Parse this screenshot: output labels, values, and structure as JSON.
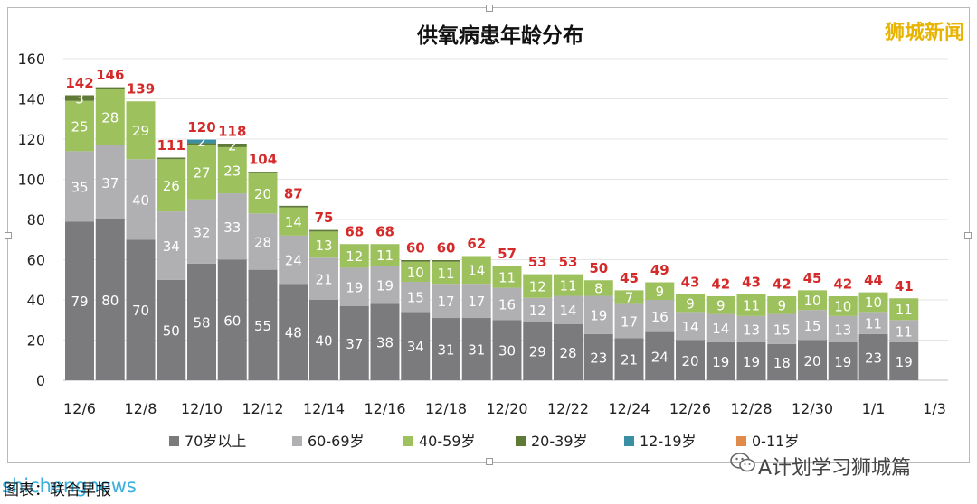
{
  "brand_logo": "狮城新闻",
  "watermark_left": "shichengnews",
  "watermark_right": "A计划学习狮城篇",
  "source_text": "图表：联合早报",
  "icons": {
    "wechat": "wechat-icon"
  },
  "chart_data": {
    "type": "bar",
    "stacked": true,
    "title": "供氧病患年龄分布",
    "xlabel": "",
    "ylabel": "",
    "ylim": [
      0,
      160
    ],
    "yticks": [
      0,
      20,
      40,
      60,
      80,
      100,
      120,
      140,
      160
    ],
    "grid": true,
    "legend_position": "bottom",
    "x_tick_labels": [
      "12/6",
      "12/8",
      "12/10",
      "12/12",
      "12/14",
      "12/16",
      "12/18",
      "12/20",
      "12/22",
      "12/24",
      "12/26",
      "12/28",
      "12/30",
      "1/1",
      "1/3"
    ],
    "categories": [
      "12/6",
      "12/7",
      "12/8",
      "12/9",
      "12/10",
      "12/11",
      "12/12",
      "12/13",
      "12/14",
      "12/15",
      "12/16",
      "12/17",
      "12/18",
      "12/19",
      "12/20",
      "12/21",
      "12/22",
      "12/23",
      "12/24",
      "12/25",
      "12/26",
      "12/27",
      "12/28",
      "12/29",
      "12/30",
      "12/31",
      "1/1",
      "1/2"
    ],
    "totals": [
      142,
      146,
      139,
      111,
      120,
      118,
      104,
      87,
      75,
      68,
      68,
      60,
      60,
      62,
      57,
      53,
      53,
      50,
      45,
      49,
      43,
      42,
      43,
      42,
      45,
      42,
      44,
      41
    ],
    "series": [
      {
        "name": "70岁以上",
        "color": "#7b7b7e",
        "values": [
          79,
          80,
          70,
          50,
          58,
          60,
          55,
          48,
          40,
          37,
          38,
          34,
          31,
          31,
          30,
          29,
          28,
          23,
          21,
          24,
          20,
          19,
          19,
          18,
          20,
          19,
          23,
          19
        ]
      },
      {
        "name": "60-69岁",
        "color": "#b0b0b3",
        "values": [
          35,
          37,
          40,
          34,
          32,
          33,
          28,
          24,
          21,
          19,
          19,
          15,
          17,
          17,
          16,
          12,
          14,
          19,
          17,
          16,
          14,
          14,
          13,
          15,
          15,
          13,
          11,
          11
        ]
      },
      {
        "name": "40-59岁",
        "color": "#9cc15d",
        "values": [
          25,
          28,
          29,
          26,
          27,
          23,
          20,
          14,
          13,
          12,
          11,
          10,
          11,
          14,
          11,
          12,
          11,
          8,
          7,
          9,
          9,
          9,
          11,
          9,
          10,
          10,
          10,
          11
        ]
      },
      {
        "name": "20-39岁",
        "color": "#5e7a36",
        "values": [
          3,
          1,
          0,
          1,
          1,
          2,
          1,
          1,
          1,
          0,
          0,
          1,
          1,
          0,
          0,
          0,
          0,
          0,
          0,
          0,
          0,
          0,
          0,
          0,
          0,
          0,
          0,
          0
        ]
      },
      {
        "name": "12-19岁",
        "color": "#3a8fa3",
        "values": [
          0,
          0,
          0,
          0,
          2,
          0,
          0,
          0,
          0,
          0,
          0,
          0,
          0,
          0,
          0,
          0,
          0,
          0,
          0,
          0,
          0,
          0,
          0,
          0,
          0,
          0,
          0,
          0
        ]
      },
      {
        "name": "0-11岁",
        "color": "#e08b4b",
        "values": [
          0,
          0,
          0,
          0,
          0,
          0,
          0,
          0,
          0,
          0,
          0,
          0,
          0,
          0,
          0,
          0,
          0,
          0,
          0,
          0,
          0,
          0,
          0,
          0,
          0,
          0,
          0,
          0
        ]
      }
    ],
    "segment_labels": [
      [
        "79",
        "35",
        "25",
        "3",
        "",
        ""
      ],
      [
        "80",
        "37",
        "28",
        "",
        "",
        ""
      ],
      [
        "70",
        "40",
        "29",
        "",
        "",
        ""
      ],
      [
        "50",
        "34",
        "26",
        "",
        "",
        ""
      ],
      [
        "58",
        "32",
        "27",
        "",
        "2",
        ""
      ],
      [
        "60",
        "33",
        "23",
        "2",
        "",
        ""
      ],
      [
        "55",
        "28",
        "20",
        "",
        "",
        ""
      ],
      [
        "48",
        "24",
        "14",
        "",
        "",
        ""
      ],
      [
        "40",
        "21",
        "13",
        "",
        "",
        ""
      ],
      [
        "37",
        "19",
        "12",
        "",
        "",
        ""
      ],
      [
        "38",
        "19",
        "11",
        "",
        "",
        ""
      ],
      [
        "34",
        "15",
        "10",
        "",
        "",
        ""
      ],
      [
        "31",
        "17",
        "11",
        "",
        "",
        ""
      ],
      [
        "31",
        "17",
        "14",
        "",
        "",
        ""
      ],
      [
        "30",
        "16",
        "11",
        "",
        "",
        ""
      ],
      [
        "29",
        "12",
        "12",
        "",
        "",
        ""
      ],
      [
        "28",
        "14",
        "11",
        "",
        "",
        ""
      ],
      [
        "23",
        "19",
        "8",
        "",
        "",
        ""
      ],
      [
        "21",
        "17",
        "7",
        "",
        "",
        ""
      ],
      [
        "24",
        "16",
        "9",
        "",
        "",
        ""
      ],
      [
        "20",
        "14",
        "9",
        "",
        "",
        ""
      ],
      [
        "19",
        "14",
        "9",
        "",
        "",
        ""
      ],
      [
        "19",
        "13",
        "11",
        "",
        "",
        ""
      ],
      [
        "18",
        "15",
        "9",
        "",
        "",
        ""
      ],
      [
        "20",
        "15",
        "10",
        "",
        "",
        ""
      ],
      [
        "19",
        "13",
        "10",
        "",
        "",
        ""
      ],
      [
        "23",
        "11",
        "10",
        "",
        "",
        ""
      ],
      [
        "19",
        "11",
        "11",
        "",
        "",
        ""
      ]
    ],
    "colors": {
      "total_label": "#d42a2a",
      "axis_text": "#222222",
      "grid": "#e4e4e4"
    }
  }
}
